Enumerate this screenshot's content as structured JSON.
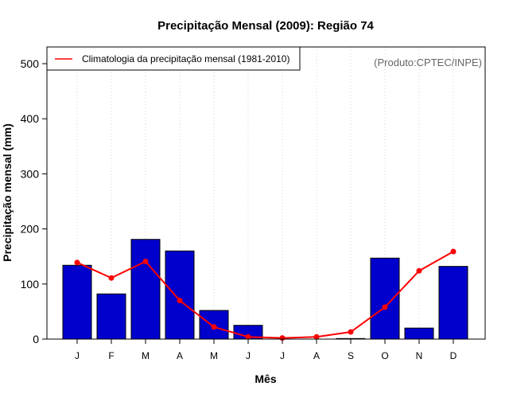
{
  "chart_data": {
    "type": "bar",
    "title": "Precipitação Mensal (2009): Região 74",
    "xlabel": "Mês",
    "ylabel": "Precipitação mensal (mm)",
    "categories": [
      "J",
      "F",
      "M",
      "A",
      "M",
      "J",
      "J",
      "A",
      "S",
      "O",
      "N",
      "D"
    ],
    "ylim": [
      0,
      530
    ],
    "yticks": [
      0,
      100,
      200,
      300,
      400,
      500
    ],
    "grid": "vertical-dotted",
    "series": [
      {
        "name": "Precipitação mensal (2009)",
        "type": "bar",
        "color": "#0000cd",
        "values": [
          134,
          82,
          181,
          160,
          52,
          25,
          0,
          0,
          1,
          147,
          20,
          132
        ]
      },
      {
        "name": "Climatologia da precipitação mensal (1981-2010)",
        "type": "line",
        "color": "#ff0000",
        "values": [
          139,
          111,
          141,
          70,
          22,
          4,
          2,
          4,
          13,
          58,
          124,
          159
        ]
      }
    ],
    "legend": {
      "position": "top-left",
      "entries": [
        "Climatologia da precipitação mensal (1981-2010)"
      ]
    },
    "annotation": "(Produto:CPTEC/INPE)"
  }
}
